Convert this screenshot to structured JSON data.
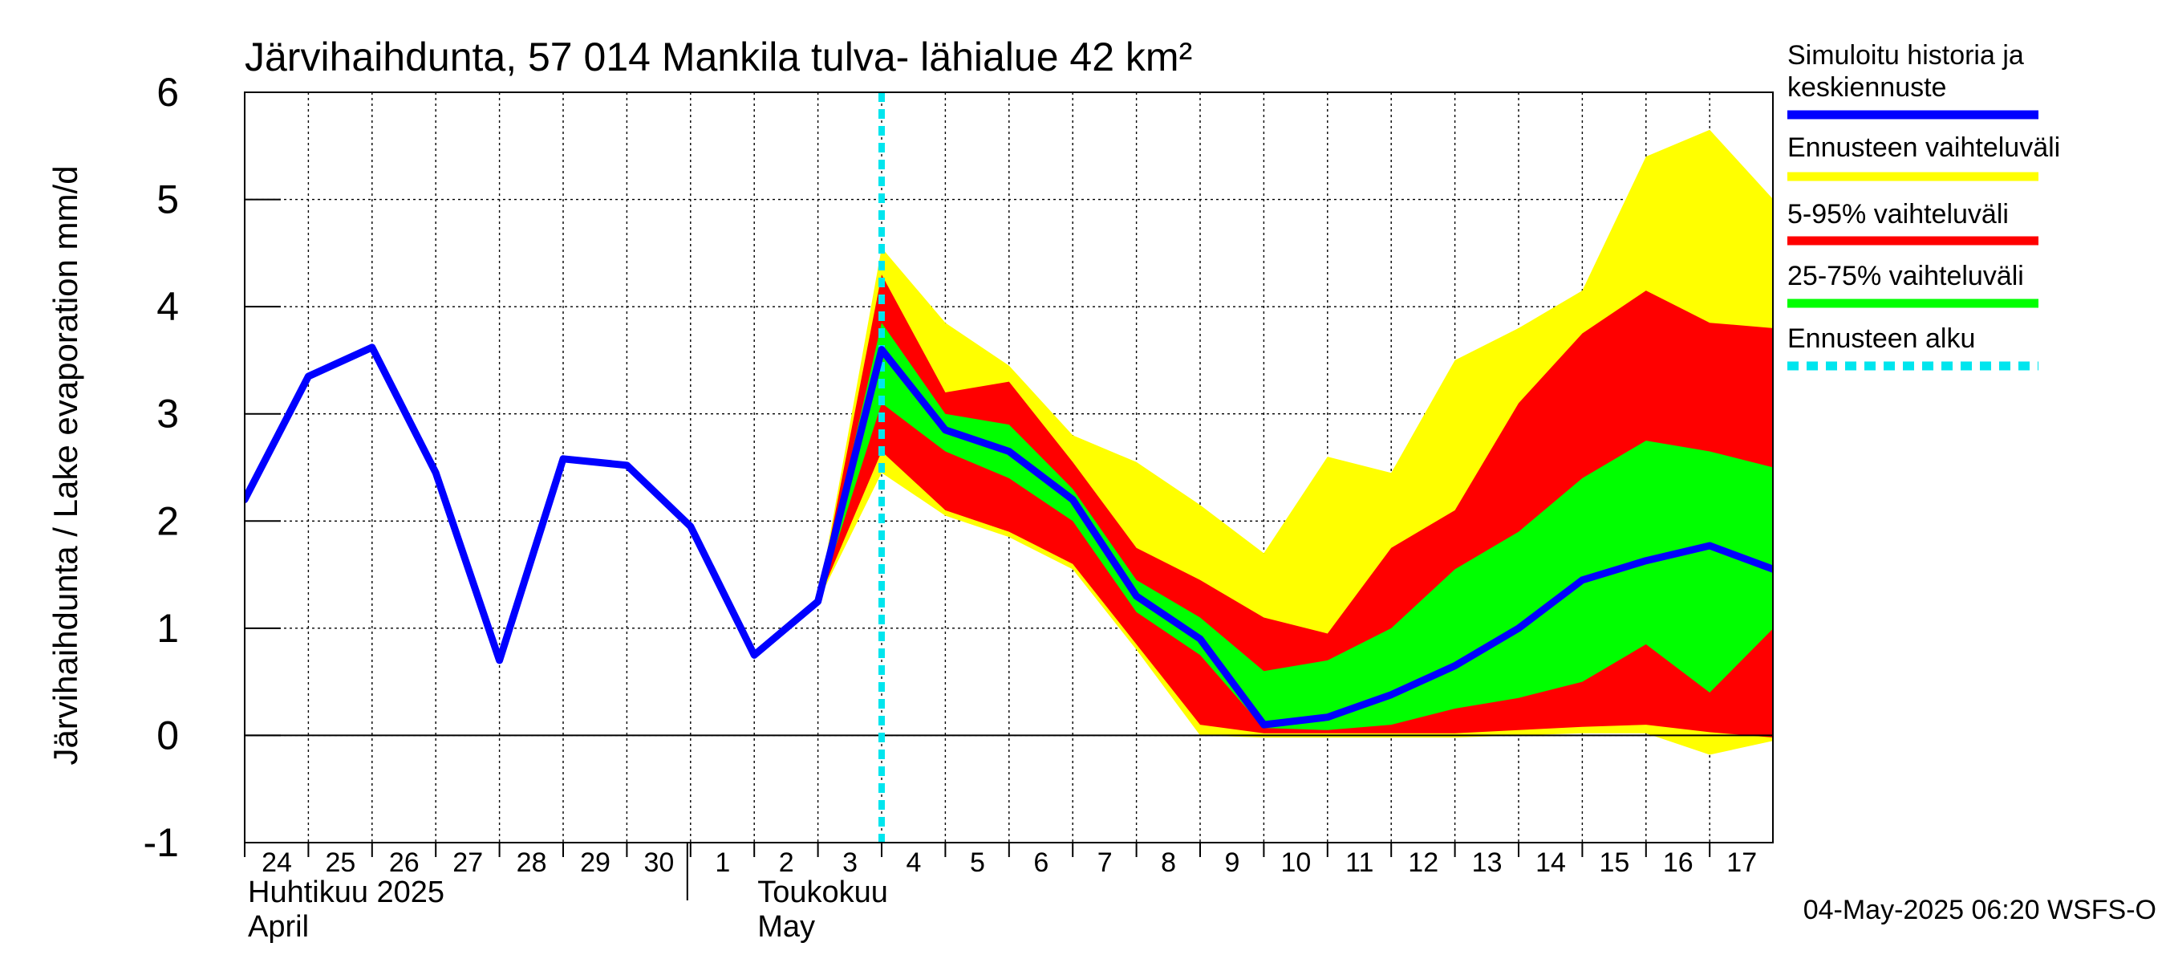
{
  "chart_data": {
    "type": "area",
    "title": "Järvihaihdunta, 57 014 Mankila tulva- lähialue 42 km²",
    "ylabel": "Järvihaihdunta / Lake evaporation   mm/d",
    "ylim": [
      -1,
      6
    ],
    "yticks": [
      -1,
      0,
      1,
      2,
      3,
      4,
      5,
      6
    ],
    "grid": true,
    "x_range": [
      "2025-04-24",
      "2025-05-18"
    ],
    "day_labels": [
      {
        "date": "2025-04-24",
        "label": "24"
      },
      {
        "date": "2025-04-25",
        "label": "25"
      },
      {
        "date": "2025-04-26",
        "label": "26"
      },
      {
        "date": "2025-04-27",
        "label": "27"
      },
      {
        "date": "2025-04-28",
        "label": "28"
      },
      {
        "date": "2025-04-29",
        "label": "29"
      },
      {
        "date": "2025-04-30",
        "label": "30"
      },
      {
        "date": "2025-05-01",
        "label": "1"
      },
      {
        "date": "2025-05-02",
        "label": "2"
      },
      {
        "date": "2025-05-03",
        "label": "3"
      },
      {
        "date": "2025-05-04",
        "label": "4"
      },
      {
        "date": "2025-05-05",
        "label": "5"
      },
      {
        "date": "2025-05-06",
        "label": "6"
      },
      {
        "date": "2025-05-07",
        "label": "7"
      },
      {
        "date": "2025-05-08",
        "label": "8"
      },
      {
        "date": "2025-05-09",
        "label": "9"
      },
      {
        "date": "2025-05-10",
        "label": "10"
      },
      {
        "date": "2025-05-11",
        "label": "11"
      },
      {
        "date": "2025-05-12",
        "label": "12"
      },
      {
        "date": "2025-05-13",
        "label": "13"
      },
      {
        "date": "2025-05-14",
        "label": "14"
      },
      {
        "date": "2025-05-15",
        "label": "15"
      },
      {
        "date": "2025-05-16",
        "label": "16"
      },
      {
        "date": "2025-05-17",
        "label": "17"
      }
    ],
    "month_labels": [
      {
        "date": "2025-04-24",
        "line1": "Huhtikuu  2025",
        "line2": "April"
      },
      {
        "date": "2025-05-02",
        "line1": "Toukokuu",
        "line2": "May"
      }
    ],
    "month_separator_date": "2025-05-01",
    "forecast_start_date": "2025-05-04",
    "bands_dates": [
      "2025-05-03",
      "2025-05-04",
      "2025-05-05",
      "2025-05-06",
      "2025-05-07",
      "2025-05-08",
      "2025-05-09",
      "2025-05-10",
      "2025-05-11",
      "2025-05-12",
      "2025-05-13",
      "2025-05-14",
      "2025-05-15",
      "2025-05-16",
      "2025-05-17",
      "2025-05-18"
    ],
    "series": [
      {
        "name": "Ennusteen vaihteluväli",
        "color": "#ffff00",
        "kind": "band",
        "low": [
          1.25,
          2.45,
          2.05,
          1.85,
          1.55,
          0.8,
          0.0,
          -0.02,
          -0.02,
          -0.02,
          -0.02,
          0.0,
          0.02,
          0.02,
          -0.18,
          -0.05
        ],
        "high": [
          1.25,
          4.55,
          3.85,
          3.45,
          2.8,
          2.55,
          2.15,
          1.7,
          2.6,
          2.45,
          3.5,
          3.8,
          4.15,
          5.4,
          5.65,
          5.0
        ]
      },
      {
        "name": "5-95% vaihteluväli",
        "color": "#ff0000",
        "kind": "band",
        "low": [
          1.25,
          2.65,
          2.1,
          1.9,
          1.6,
          0.85,
          0.1,
          0.02,
          0.02,
          0.02,
          0.02,
          0.05,
          0.08,
          0.1,
          0.03,
          -0.02
        ],
        "high": [
          1.25,
          4.3,
          3.2,
          3.3,
          2.55,
          1.75,
          1.45,
          1.1,
          0.95,
          1.75,
          2.1,
          3.1,
          3.75,
          4.15,
          3.85,
          3.8
        ]
      },
      {
        "name": "25-75% vaihteluväli",
        "color": "#00ff00",
        "kind": "band",
        "low": [
          1.25,
          3.1,
          2.65,
          2.4,
          2.0,
          1.15,
          0.75,
          0.07,
          0.05,
          0.1,
          0.25,
          0.35,
          0.5,
          0.85,
          0.4,
          1.0
        ],
        "high": [
          1.25,
          3.85,
          3.0,
          2.9,
          2.3,
          1.45,
          1.1,
          0.6,
          0.7,
          1.0,
          1.55,
          1.9,
          2.4,
          2.75,
          2.65,
          2.5
        ]
      },
      {
        "name": "Simuloitu historia ja keskiennuste",
        "color": "#0000ff",
        "kind": "line",
        "x": [
          "2025-04-24",
          "2025-04-25",
          "2025-04-26",
          "2025-04-27",
          "2025-04-28",
          "2025-04-29",
          "2025-04-30",
          "2025-05-01",
          "2025-05-02",
          "2025-05-03",
          "2025-05-04",
          "2025-05-05",
          "2025-05-06",
          "2025-05-07",
          "2025-05-08",
          "2025-05-09",
          "2025-05-10",
          "2025-05-11",
          "2025-05-12",
          "2025-05-13",
          "2025-05-14",
          "2025-05-15",
          "2025-05-16",
          "2025-05-17",
          "2025-05-18"
        ],
        "values": [
          2.2,
          3.35,
          3.62,
          2.45,
          0.7,
          2.58,
          2.52,
          1.95,
          0.75,
          1.25,
          3.6,
          2.85,
          2.65,
          2.2,
          1.3,
          0.9,
          0.1,
          0.17,
          0.38,
          0.65,
          1.0,
          1.45,
          1.63,
          1.77,
          1.55
        ]
      }
    ],
    "legend": {
      "placement": "right",
      "items": [
        {
          "label_lines": [
            "Simuloitu historia ja",
            "keskiennuste"
          ],
          "color": "#0000ff",
          "style": "solid"
        },
        {
          "label_lines": [
            "Ennusteen vaihteluväli"
          ],
          "color": "#ffff00",
          "style": "solid"
        },
        {
          "label_lines": [
            "5-95% vaihteluväli"
          ],
          "color": "#ff0000",
          "style": "solid"
        },
        {
          "label_lines": [
            "25-75% vaihteluväli"
          ],
          "color": "#00ff00",
          "style": "solid"
        },
        {
          "label_lines": [
            "Ennusteen alku"
          ],
          "color": "#00e5ee",
          "style": "dashed"
        }
      ]
    },
    "forecast_line_color": "#00e5ee",
    "footer": "04-May-2025 06:20 WSFS-O"
  }
}
